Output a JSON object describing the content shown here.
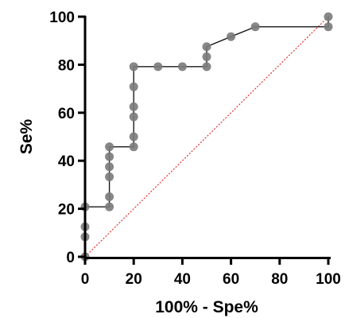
{
  "chart_data": {
    "type": "line",
    "title": "",
    "xlabel": "100% - Spe%",
    "ylabel": "Se%",
    "xlim": [
      0,
      100
    ],
    "ylim": [
      0,
      100
    ],
    "x_ticks": [
      "0",
      "20",
      "40",
      "60",
      "80",
      "100"
    ],
    "y_ticks": [
      "0",
      "20",
      "40",
      "60",
      "80",
      "100"
    ],
    "grid": false,
    "legend": "none",
    "series": [
      {
        "role": "roc-curve",
        "color": "#1a1a1a",
        "marker_color": "#7a7a7a",
        "points": [
          {
            "x": 0,
            "y": 0
          },
          {
            "x": 0,
            "y": 8.3
          },
          {
            "x": 0,
            "y": 12.5
          },
          {
            "x": 0,
            "y": 20.8
          },
          {
            "x": 10,
            "y": 20.8
          },
          {
            "x": 10,
            "y": 25
          },
          {
            "x": 10,
            "y": 33.3
          },
          {
            "x": 10,
            "y": 37.5
          },
          {
            "x": 10,
            "y": 41.7
          },
          {
            "x": 10,
            "y": 45.8
          },
          {
            "x": 20,
            "y": 45.8
          },
          {
            "x": 20,
            "y": 50
          },
          {
            "x": 20,
            "y": 58.3
          },
          {
            "x": 20,
            "y": 62.5
          },
          {
            "x": 20,
            "y": 70.8
          },
          {
            "x": 20,
            "y": 79.2
          },
          {
            "x": 30,
            "y": 79.2
          },
          {
            "x": 40,
            "y": 79.2
          },
          {
            "x": 50,
            "y": 79.2
          },
          {
            "x": 50,
            "y": 83.3
          },
          {
            "x": 50,
            "y": 87.5
          },
          {
            "x": 60,
            "y": 91.7
          },
          {
            "x": 70,
            "y": 95.8
          },
          {
            "x": 100,
            "y": 95.8
          },
          {
            "x": 100,
            "y": 100
          }
        ]
      },
      {
        "role": "reference-line",
        "style": "dotted",
        "color": "#e0332f",
        "points": [
          {
            "x": 0,
            "y": 0
          },
          {
            "x": 100,
            "y": 100
          }
        ]
      }
    ]
  }
}
